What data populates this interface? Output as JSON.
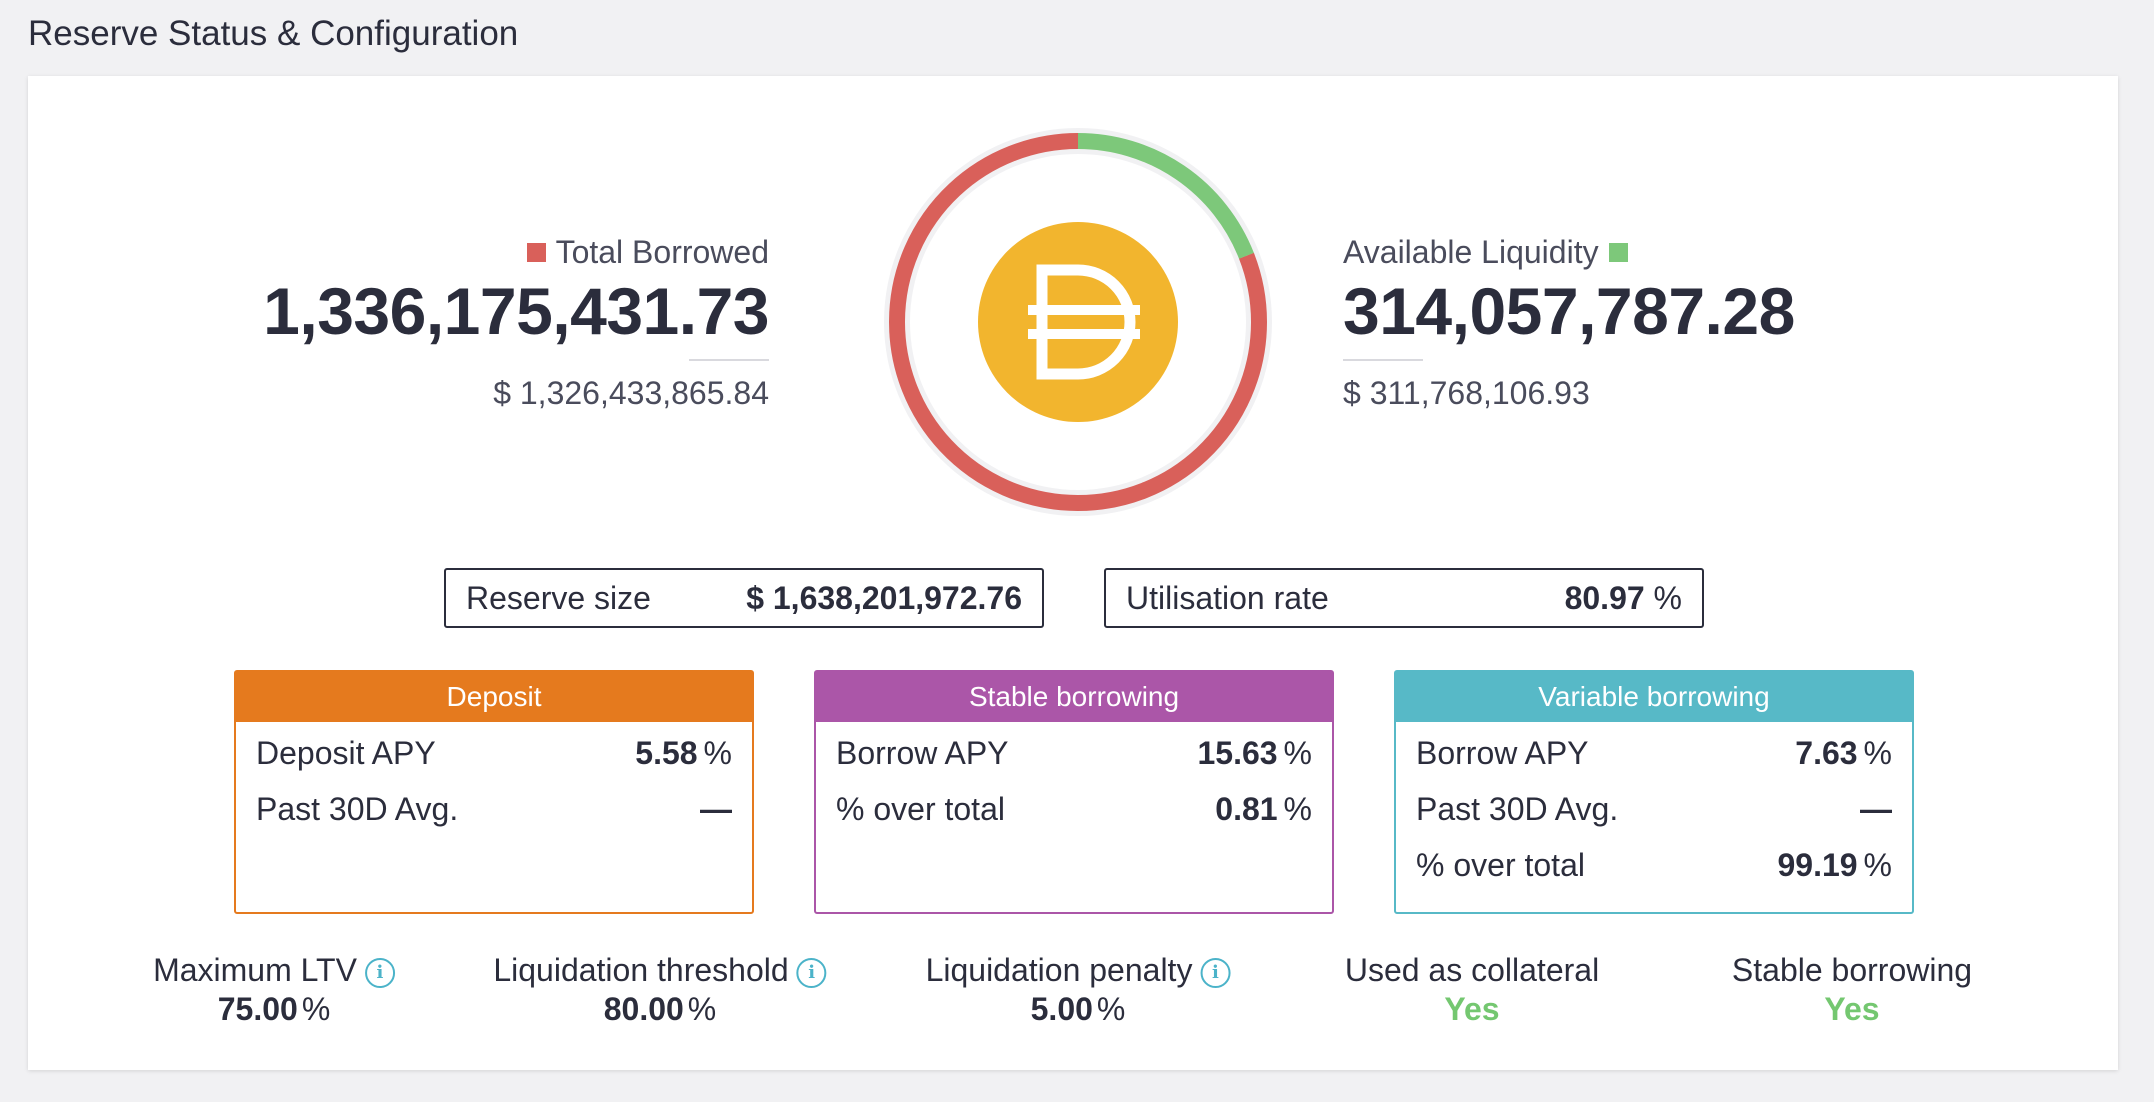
{
  "page": {
    "title": "Reserve Status & Configuration"
  },
  "colors": {
    "borrowed": "#d9605a",
    "liquidity": "#7dc87a",
    "deposit": "#e57a1e",
    "stable": "#ab56a8",
    "variable": "#57b9c7",
    "coin": "#f2b52e",
    "yes": "#74c770"
  },
  "total_borrowed": {
    "label": "Total Borrowed",
    "value": "1,336,175,431.73",
    "usd": "$ 1,326,433,865.84"
  },
  "available_liquidity": {
    "label": "Available Liquidity",
    "value": "314,057,787.28",
    "usd": "$ 311,768,106.93"
  },
  "donut": {
    "borrowed_fraction": 0.8097,
    "liquidity_fraction": 0.1903,
    "coin_icon": "dai-icon"
  },
  "reserve_size": {
    "label": "Reserve size",
    "value": "$ 1,638,201,972.76"
  },
  "utilisation_rate": {
    "label": "Utilisation rate",
    "value": "80.97",
    "unit": "%"
  },
  "deposit": {
    "header": "Deposit",
    "rows": [
      {
        "label": "Deposit APY",
        "value": "5.58",
        "unit": "%"
      },
      {
        "label": "Past 30D Avg.",
        "value": "—",
        "unit": ""
      }
    ]
  },
  "stable_borrowing": {
    "header": "Stable borrowing",
    "rows": [
      {
        "label": "Borrow APY",
        "value": "15.63",
        "unit": "%"
      },
      {
        "label": "% over total",
        "value": "0.81",
        "unit": "%"
      }
    ]
  },
  "variable_borrowing": {
    "header": "Variable borrowing",
    "rows": [
      {
        "label": "Borrow APY",
        "value": "7.63",
        "unit": "%"
      },
      {
        "label": "Past 30D Avg.",
        "value": "—",
        "unit": ""
      },
      {
        "label": "% over total",
        "value": "99.19",
        "unit": "%"
      }
    ]
  },
  "params": {
    "max_ltv": {
      "label": "Maximum LTV",
      "value": "75.00",
      "unit": "%"
    },
    "liq_threshold": {
      "label": "Liquidation threshold",
      "value": "80.00",
      "unit": "%"
    },
    "liq_penalty": {
      "label": "Liquidation penalty",
      "value": "5.00",
      "unit": "%"
    },
    "collateral": {
      "label": "Used as collateral",
      "value": "Yes"
    },
    "stable_borrowing": {
      "label": "Stable borrowing",
      "value": "Yes"
    },
    "info_glyph": "i"
  }
}
